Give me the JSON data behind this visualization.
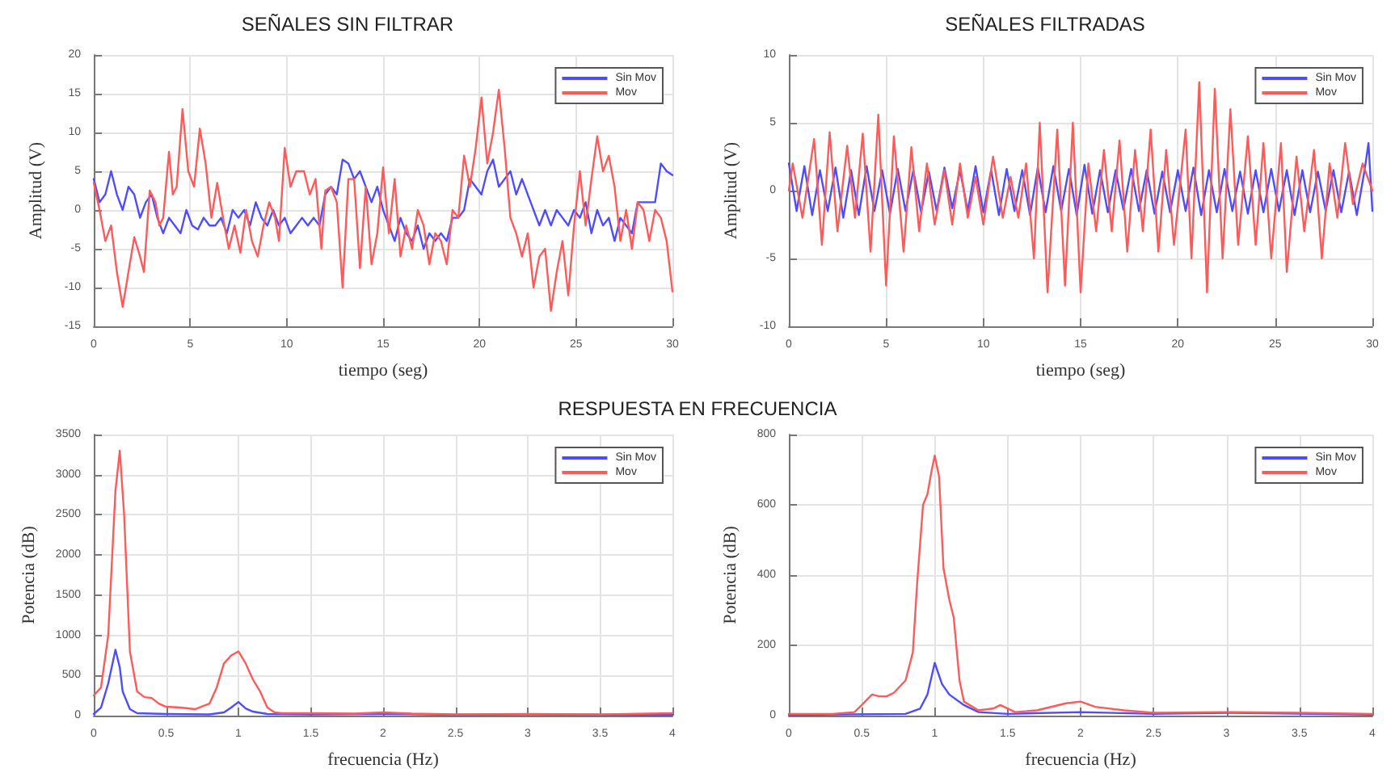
{
  "chart_data": [
    {
      "type": "line",
      "title": "SEÑALES SIN FILTRAR",
      "xlabel": "tiempo (seg)",
      "ylabel": "Amplitud (V)",
      "xlim": [
        0,
        30
      ],
      "xticks": [
        0,
        5,
        10,
        15,
        20,
        25,
        30
      ],
      "ylim": [
        -15,
        20
      ],
      "yticks": [
        -15,
        -10,
        -5,
        0,
        5,
        10,
        15,
        20
      ],
      "grid": true,
      "legend": "top right",
      "series": [
        {
          "name": "Sin Mov",
          "color": "#4d4dff",
          "x": [
            0,
            0.3,
            0.6,
            0.9,
            1.2,
            1.5,
            1.8,
            2.1,
            2.4,
            2.7,
            3,
            3.3,
            3.6,
            3.9,
            4.2,
            4.5,
            4.8,
            5.1,
            5.4,
            5.7,
            6,
            6.3,
            6.6,
            6.9,
            7.2,
            7.5,
            7.8,
            8.1,
            8.4,
            8.7,
            9,
            9.3,
            9.6,
            9.9,
            10.2,
            10.5,
            10.8,
            11.1,
            11.4,
            11.7,
            12,
            12.3,
            12.6,
            12.9,
            13.2,
            13.5,
            13.8,
            14.1,
            14.4,
            14.7,
            15,
            15.3,
            15.6,
            15.9,
            16.2,
            16.5,
            16.8,
            17.1,
            17.4,
            17.7,
            18,
            18.3,
            18.6,
            18.9,
            19.2,
            19.5,
            19.8,
            20.1,
            20.4,
            20.7,
            21,
            21.3,
            21.6,
            21.9,
            22.2,
            22.5,
            22.8,
            23.1,
            23.4,
            23.7,
            24,
            24.3,
            24.6,
            24.9,
            25.2,
            25.5,
            25.8,
            26.1,
            26.4,
            26.7,
            27,
            27.3,
            27.6,
            27.9,
            28.2,
            28.5,
            28.8,
            29.1,
            29.4,
            29.7,
            30
          ],
          "values": [
            4,
            1,
            2,
            5,
            2,
            0,
            3,
            2,
            -1,
            1,
            2,
            -1,
            -3,
            -1,
            -2,
            -3,
            0,
            -2,
            -2.5,
            -1,
            -2,
            -2,
            -1,
            -3,
            0,
            -1,
            0,
            -2,
            1,
            -1,
            -2,
            0,
            -2,
            -1,
            -3,
            -2,
            -1,
            -2,
            -1,
            -2,
            2,
            3,
            2,
            6.5,
            6,
            4,
            5,
            3,
            1,
            3,
            0,
            -2,
            -4,
            -1,
            -3,
            -4,
            -2,
            -5,
            -3,
            -4,
            -3,
            -4,
            -1,
            -1,
            0,
            4,
            3,
            2,
            5,
            6.5,
            3,
            4,
            5,
            2,
            4,
            2,
            0,
            -2,
            0,
            -2,
            0,
            -1,
            -2,
            0,
            -1,
            1,
            -3,
            0,
            -2,
            -1,
            -4,
            -1,
            -2,
            -3,
            1,
            1,
            1,
            1,
            6,
            5,
            4.5
          ]
        },
        {
          "name": "Mov",
          "color": "#ff5a5a",
          "x": [
            0,
            0.3,
            0.6,
            0.9,
            1.2,
            1.5,
            1.8,
            2.1,
            2.4,
            2.6,
            2.9,
            3.2,
            3.4,
            3.6,
            3.9,
            4.1,
            4.3,
            4.6,
            4.9,
            5.2,
            5.5,
            5.8,
            6.1,
            6.4,
            6.7,
            7,
            7.3,
            7.6,
            7.9,
            8.2,
            8.5,
            8.8,
            9.1,
            9.4,
            9.6,
            9.9,
            10.2,
            10.5,
            10.9,
            11.2,
            11.5,
            11.8,
            12,
            12.3,
            12.6,
            12.9,
            13.2,
            13.5,
            13.8,
            14.1,
            14.4,
            14.7,
            15,
            15.3,
            15.6,
            15.9,
            16.2,
            16.5,
            16.8,
            17.1,
            17.4,
            17.7,
            18,
            18.3,
            18.6,
            18.9,
            19.2,
            19.5,
            19.8,
            20.1,
            20.4,
            20.7,
            21,
            21.3,
            21.6,
            21.9,
            22.2,
            22.5,
            22.8,
            23.1,
            23.4,
            23.7,
            24,
            24.3,
            24.6,
            24.9,
            25.2,
            25.5,
            25.8,
            26.1,
            26.4,
            26.7,
            27,
            27.3,
            27.6,
            27.9,
            28.2,
            28.5,
            28.8,
            29.1,
            29.4,
            29.7,
            30
          ],
          "values": [
            3.5,
            0,
            -4,
            -2,
            -8,
            -12.5,
            -8,
            -3.5,
            -6,
            -8,
            2.5,
            1,
            -2,
            -1,
            7.5,
            2,
            3,
            13,
            5,
            3,
            10.5,
            6,
            -1,
            3.5,
            -1,
            -5,
            -2,
            -5.5,
            0,
            -4,
            -6,
            -2,
            1,
            -1,
            -4,
            8,
            3,
            5,
            5,
            2,
            4,
            -5,
            2.5,
            3,
            1,
            -10,
            4,
            4,
            -7.5,
            3,
            -7,
            -3,
            5.5,
            -3,
            4,
            -6,
            -2,
            -5,
            0,
            -2,
            -7,
            -3,
            -4,
            -7,
            0,
            -1,
            7,
            3,
            8,
            14.5,
            6,
            10,
            15.5,
            8,
            -1,
            -3,
            -6,
            -3,
            -10,
            -6,
            -5,
            -13,
            -8,
            -4,
            -11,
            -2,
            5,
            -2,
            4,
            9.5,
            5,
            7,
            3,
            -4,
            0,
            -5,
            1,
            0,
            -4,
            0,
            -1,
            -4,
            -10.5
          ]
        }
      ]
    },
    {
      "type": "line",
      "title": "SEÑALES FILTRADAS",
      "xlabel": "tiempo (seg)",
      "ylabel": "Amplitud (V)",
      "xlim": [
        0,
        30
      ],
      "xticks": [
        0,
        5,
        10,
        15,
        20,
        25,
        30
      ],
      "ylim": [
        -10,
        10
      ],
      "yticks": [
        -10,
        -5,
        0,
        5,
        10
      ],
      "grid": true,
      "legend": "top right",
      "series": [
        {
          "name": "Sin Mov",
          "color": "#4d4dff",
          "x": [
            0,
            0.4,
            0.8,
            1.2,
            1.6,
            2,
            2.4,
            2.8,
            3.2,
            3.6,
            4,
            4.4,
            4.8,
            5.2,
            5.6,
            6,
            6.4,
            6.8,
            7.2,
            7.6,
            8,
            8.4,
            8.8,
            9.2,
            9.6,
            10,
            10.4,
            10.8,
            11.2,
            11.6,
            12,
            12.4,
            12.8,
            13.2,
            13.6,
            14,
            14.4,
            14.8,
            15.2,
            15.6,
            16,
            16.4,
            16.8,
            17.2,
            17.6,
            18,
            18.4,
            18.8,
            19.2,
            19.6,
            20,
            20.4,
            20.8,
            21.2,
            21.6,
            22,
            22.4,
            22.8,
            23.2,
            23.6,
            24,
            24.4,
            24.8,
            25.2,
            25.6,
            26,
            26.4,
            26.8,
            27.2,
            27.6,
            28,
            28.4,
            28.8,
            29.2,
            29.6,
            29.8,
            30
          ],
          "values": [
            2,
            -1.5,
            1.8,
            -1.8,
            1.5,
            -1.5,
            1.7,
            -2,
            1.5,
            -1.8,
            1.8,
            -1.5,
            1.5,
            -1.7,
            1.6,
            -1.5,
            1.5,
            -1.6,
            1.4,
            -1.5,
            1.7,
            -1.3,
            1.5,
            -1.5,
            1.8,
            -1.6,
            1.5,
            -1.8,
            1.6,
            -1.5,
            1.5,
            -1.8,
            1.7,
            -1.6,
            1.8,
            -1.5,
            1.6,
            -1.8,
            1.9,
            -1.7,
            1.5,
            -1.6,
            1.5,
            -1.4,
            1.6,
            -1.5,
            1.5,
            -1.7,
            1.4,
            -1.6,
            1.5,
            -1.5,
            1.7,
            -1.8,
            1.5,
            -1.6,
            1.6,
            -1.5,
            1.4,
            -1.7,
            1.5,
            -1.6,
            1.6,
            -1.5,
            1.5,
            -1.8,
            1.5,
            -1.6,
            1.4,
            -1.5,
            1.5,
            -1.6,
            1.4,
            -1.8,
            1.5,
            3.5,
            -1.5
          ]
        },
        {
          "name": "Mov",
          "color": "#ff5a5a",
          "x": [
            0,
            0.2,
            0.7,
            1.3,
            1.7,
            2.1,
            2.5,
            3,
            3.4,
            3.8,
            4.2,
            4.6,
            5,
            5.4,
            5.9,
            6.3,
            6.7,
            7.1,
            7.5,
            8,
            8.4,
            8.8,
            9.2,
            9.6,
            10,
            10.5,
            11,
            11.4,
            11.8,
            12.2,
            12.6,
            12.9,
            13.3,
            13.8,
            14.2,
            14.6,
            15,
            15.4,
            15.8,
            16.2,
            16.6,
            17,
            17.4,
            17.8,
            18.2,
            18.6,
            19,
            19.4,
            19.8,
            20.4,
            20.7,
            21.1,
            21.5,
            21.9,
            22.3,
            22.7,
            23.1,
            23.6,
            24,
            24.4,
            24.8,
            25.3,
            25.6,
            26.1,
            26.5,
            27,
            27.4,
            27.8,
            28.2,
            28.6,
            29,
            29.5,
            30
          ],
          "values": [
            0,
            2,
            -2,
            3.8,
            -4,
            4.3,
            -3,
            3.3,
            -2,
            4.2,
            -4.5,
            5.6,
            -7,
            4,
            -4.5,
            3.2,
            -3,
            2,
            -2.5,
            1.5,
            -2.5,
            2,
            -2,
            1,
            -2.5,
            2.5,
            -2,
            1,
            -2,
            2,
            -5,
            5,
            -7.5,
            4.5,
            -7,
            5,
            -7.5,
            2,
            -3,
            3,
            -3,
            3.7,
            -4.5,
            3,
            -3,
            4.5,
            -4.5,
            3,
            -4,
            4.5,
            -5,
            8,
            -7.5,
            7.5,
            -5,
            6,
            -4,
            4,
            -4,
            3.5,
            -5,
            3.5,
            -6,
            2.5,
            -3,
            3,
            -5,
            2,
            -2,
            3.5,
            -1,
            2,
            0
          ]
        }
      ]
    },
    {
      "type": "line",
      "title": "RESPUESTA EN FRECUENCIA",
      "xlabel": "frecuencia (Hz)",
      "ylabel": "Potencia (dB)",
      "xlim": [
        0,
        4
      ],
      "xticks": [
        0,
        0.5,
        1,
        1.5,
        2,
        2.5,
        3,
        3.5,
        4
      ],
      "ylim": [
        0,
        3500
      ],
      "yticks": [
        0,
        500,
        1000,
        1500,
        2000,
        2500,
        3000,
        3500
      ],
      "grid": true,
      "legend": "top right",
      "series": [
        {
          "name": "Sin Mov",
          "color": "#4d4dff",
          "x": [
            0,
            0.05,
            0.1,
            0.15,
            0.18,
            0.2,
            0.25,
            0.3,
            0.5,
            0.8,
            0.9,
            0.95,
            1,
            1.05,
            1.1,
            1.2,
            1.5,
            2,
            2.5,
            3,
            3.5,
            4
          ],
          "values": [
            20,
            100,
            400,
            820,
            600,
            300,
            80,
            30,
            20,
            15,
            40,
            100,
            170,
            90,
            50,
            20,
            15,
            20,
            10,
            15,
            10,
            10
          ]
        },
        {
          "name": "Mov",
          "color": "#ff5a5a",
          "x": [
            0,
            0.05,
            0.1,
            0.15,
            0.18,
            0.21,
            0.25,
            0.3,
            0.35,
            0.4,
            0.45,
            0.5,
            0.6,
            0.7,
            0.8,
            0.85,
            0.9,
            0.95,
            1,
            1.05,
            1.1,
            1.15,
            1.2,
            1.25,
            1.3,
            1.5,
            1.8,
            2,
            2.2,
            2.5,
            3,
            3.5,
            4
          ],
          "values": [
            250,
            350,
            1000,
            2800,
            3300,
            2500,
            800,
            300,
            230,
            220,
            150,
            110,
            100,
            80,
            150,
            350,
            650,
            750,
            800,
            650,
            450,
            300,
            100,
            40,
            30,
            30,
            25,
            40,
            25,
            15,
            20,
            15,
            30
          ]
        }
      ]
    },
    {
      "type": "line",
      "xlabel": "frecuencia (Hz)",
      "ylabel": "Potencia (dB)",
      "xlim": [
        0,
        4
      ],
      "xticks": [
        0,
        0.5,
        1,
        1.5,
        2,
        2.5,
        3,
        3.5,
        4
      ],
      "ylim": [
        0,
        800
      ],
      "yticks": [
        0,
        200,
        400,
        600,
        800
      ],
      "grid": true,
      "legend": "top right",
      "series": [
        {
          "name": "Sin Mov",
          "color": "#4d4dff",
          "x": [
            0,
            0.8,
            0.9,
            0.95,
            1,
            1.05,
            1.1,
            1.2,
            1.3,
            1.5,
            2,
            2.5,
            3,
            4
          ],
          "values": [
            2,
            5,
            20,
            60,
            150,
            90,
            60,
            30,
            10,
            5,
            10,
            5,
            8,
            3
          ]
        },
        {
          "name": "Mov",
          "color": "#ff5a5a",
          "x": [
            0,
            0.3,
            0.45,
            0.5,
            0.57,
            0.62,
            0.67,
            0.72,
            0.8,
            0.85,
            0.88,
            0.92,
            0.95,
            0.98,
            1,
            1.03,
            1.06,
            1.1,
            1.13,
            1.17,
            1.2,
            1.3,
            1.4,
            1.45,
            1.55,
            1.7,
            1.9,
            2,
            2.1,
            2.3,
            2.5,
            3,
            3.5,
            4
          ],
          "values": [
            5,
            5,
            10,
            30,
            60,
            55,
            55,
            65,
            100,
            180,
            380,
            600,
            630,
            700,
            740,
            680,
            420,
            330,
            280,
            100,
            40,
            15,
            20,
            30,
            10,
            15,
            35,
            40,
            25,
            15,
            8,
            10,
            8,
            5
          ]
        }
      ]
    }
  ]
}
